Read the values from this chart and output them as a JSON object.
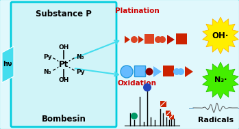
{
  "bg_color": "#e0f8fc",
  "box_facecolor": "#d0f4f8",
  "box_edge_color": "#00ccdd",
  "title": "Substance P",
  "subtitle": "Bombesin",
  "hv_color": "#44ddee",
  "platination_color": "#cc0000",
  "oh_text": "OH·",
  "n3_text": "N₃·",
  "radicals_text": "Radicals",
  "platination_text": "Platination",
  "oxidation_text": "Oxidation",
  "red_dark": "#cc2200",
  "red_med": "#dd4422",
  "red_sq": "#dd3311",
  "blue_light": "#66bbff",
  "blue_med": "#44aaff",
  "burst_yellow": "#ffee00",
  "burst_yellow_edge": "#ffaa00",
  "burst_green": "#44ee00",
  "burst_green_edge": "#22bb00"
}
